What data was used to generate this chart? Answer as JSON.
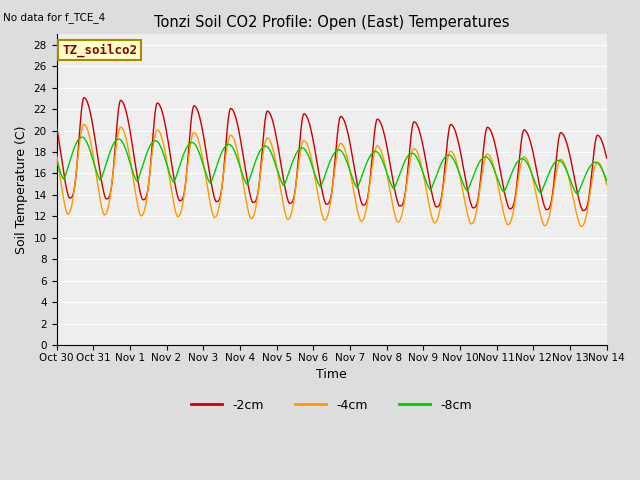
{
  "title": "Tonzi Soil CO2 Profile: Open (East) Temperatures",
  "subtitle": "No data for f_TCE_4",
  "xlabel": "Time",
  "ylabel": "Soil Temperature (C)",
  "ylim": [
    0,
    29
  ],
  "yticks": [
    0,
    2,
    4,
    6,
    8,
    10,
    12,
    14,
    16,
    18,
    20,
    22,
    24,
    26,
    28
  ],
  "legend_label": "TZ_soilco2",
  "legend_box_color": "#ffffcc",
  "legend_box_edge": "#aa8800",
  "bg_color": "#dddddd",
  "plot_bg_color": "#eeeeee",
  "line_colors": {
    "2cm": "#cc0000",
    "4cm": "#ff9900",
    "8cm": "#00cc00"
  },
  "line_labels": {
    "2cm": "-2cm",
    "4cm": "-4cm",
    "8cm": "-8cm"
  },
  "xtick_labels": [
    "Oct 30",
    "Oct 31",
    "Nov 1",
    "Nov 2",
    "Nov 3",
    "Nov 4",
    "Nov 5",
    "Nov 6",
    "Nov 7",
    "Nov 8",
    "Nov 9",
    "Nov 10",
    "Nov 11",
    "Nov 12",
    "Nov 13",
    "Nov 14"
  ],
  "num_days": 15,
  "points_per_day": 288
}
